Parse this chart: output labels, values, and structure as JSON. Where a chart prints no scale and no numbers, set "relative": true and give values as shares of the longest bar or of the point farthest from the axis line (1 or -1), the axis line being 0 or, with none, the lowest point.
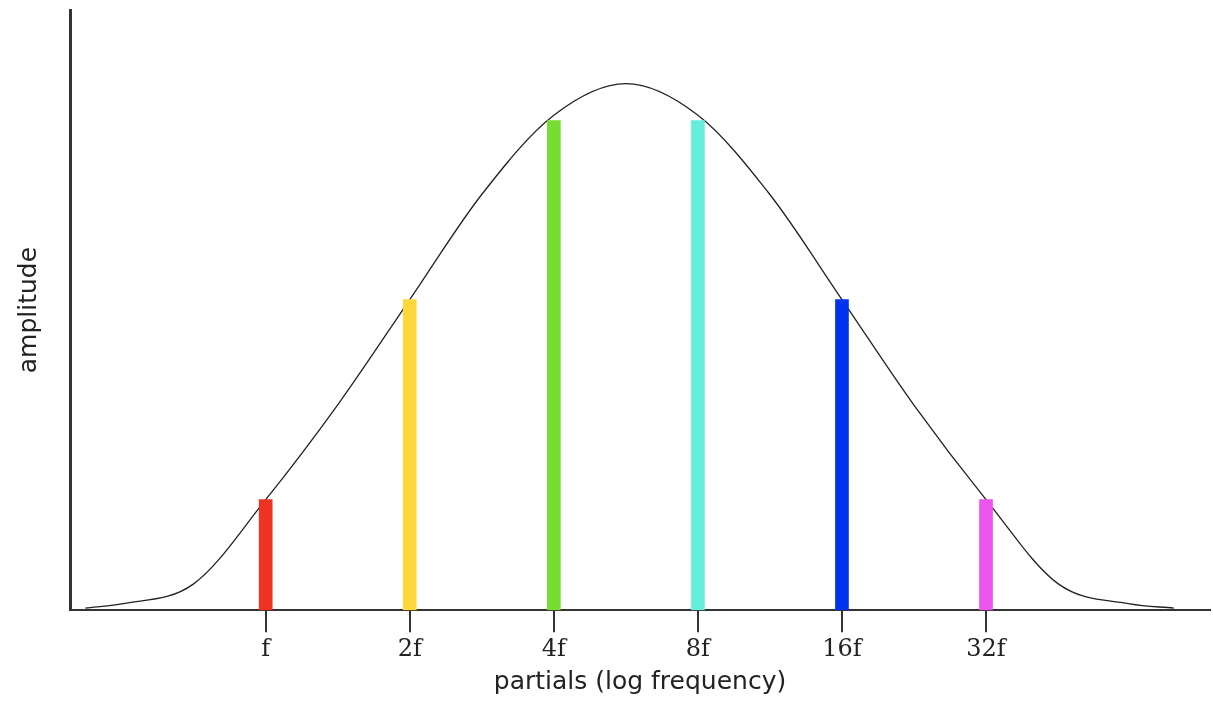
{
  "chart_data": {
    "type": "bar",
    "xlabel": "partials (log frequency)",
    "ylabel": "amplitude",
    "relative": true,
    "log": "x",
    "x": [
      1,
      2,
      4,
      8,
      16,
      32
    ],
    "xlim": [
      0.39,
      94
    ],
    "xticks": [
      {
        "value": 1,
        "label": "f"
      },
      {
        "value": 2,
        "label": "2f"
      },
      {
        "value": 4,
        "label": "4f"
      },
      {
        "value": 8,
        "label": "8f"
      },
      {
        "value": 16,
        "label": "16f"
      },
      {
        "value": 32,
        "label": "32f"
      }
    ],
    "series": [
      {
        "colors": [
          "#ee3322",
          "#ffd83a",
          "#77dd33",
          "#66eedd",
          "#0033ee",
          "#ee55ee"
        ],
        "values": [
          0.21,
          0.59,
          0.93,
          0.93,
          0.59,
          0.21
        ]
      },
      {
        "type": "line",
        "color": "#222222",
        "x": [
          0.42,
          0.5,
          0.707,
          1,
          1.414,
          2,
          2.83,
          4,
          5.66,
          8,
          11.3,
          16,
          22.6,
          32,
          45.3,
          64,
          79
        ],
        "values": [
          0.004,
          0.012,
          0.05,
          0.21,
          0.39,
          0.59,
          0.79,
          0.94,
          1,
          0.94,
          0.79,
          0.59,
          0.39,
          0.21,
          0.05,
          0.012,
          0.004
        ]
      }
    ],
    "grid": false,
    "legend": false,
    "marker": "none",
    "line_style": "solid"
  }
}
